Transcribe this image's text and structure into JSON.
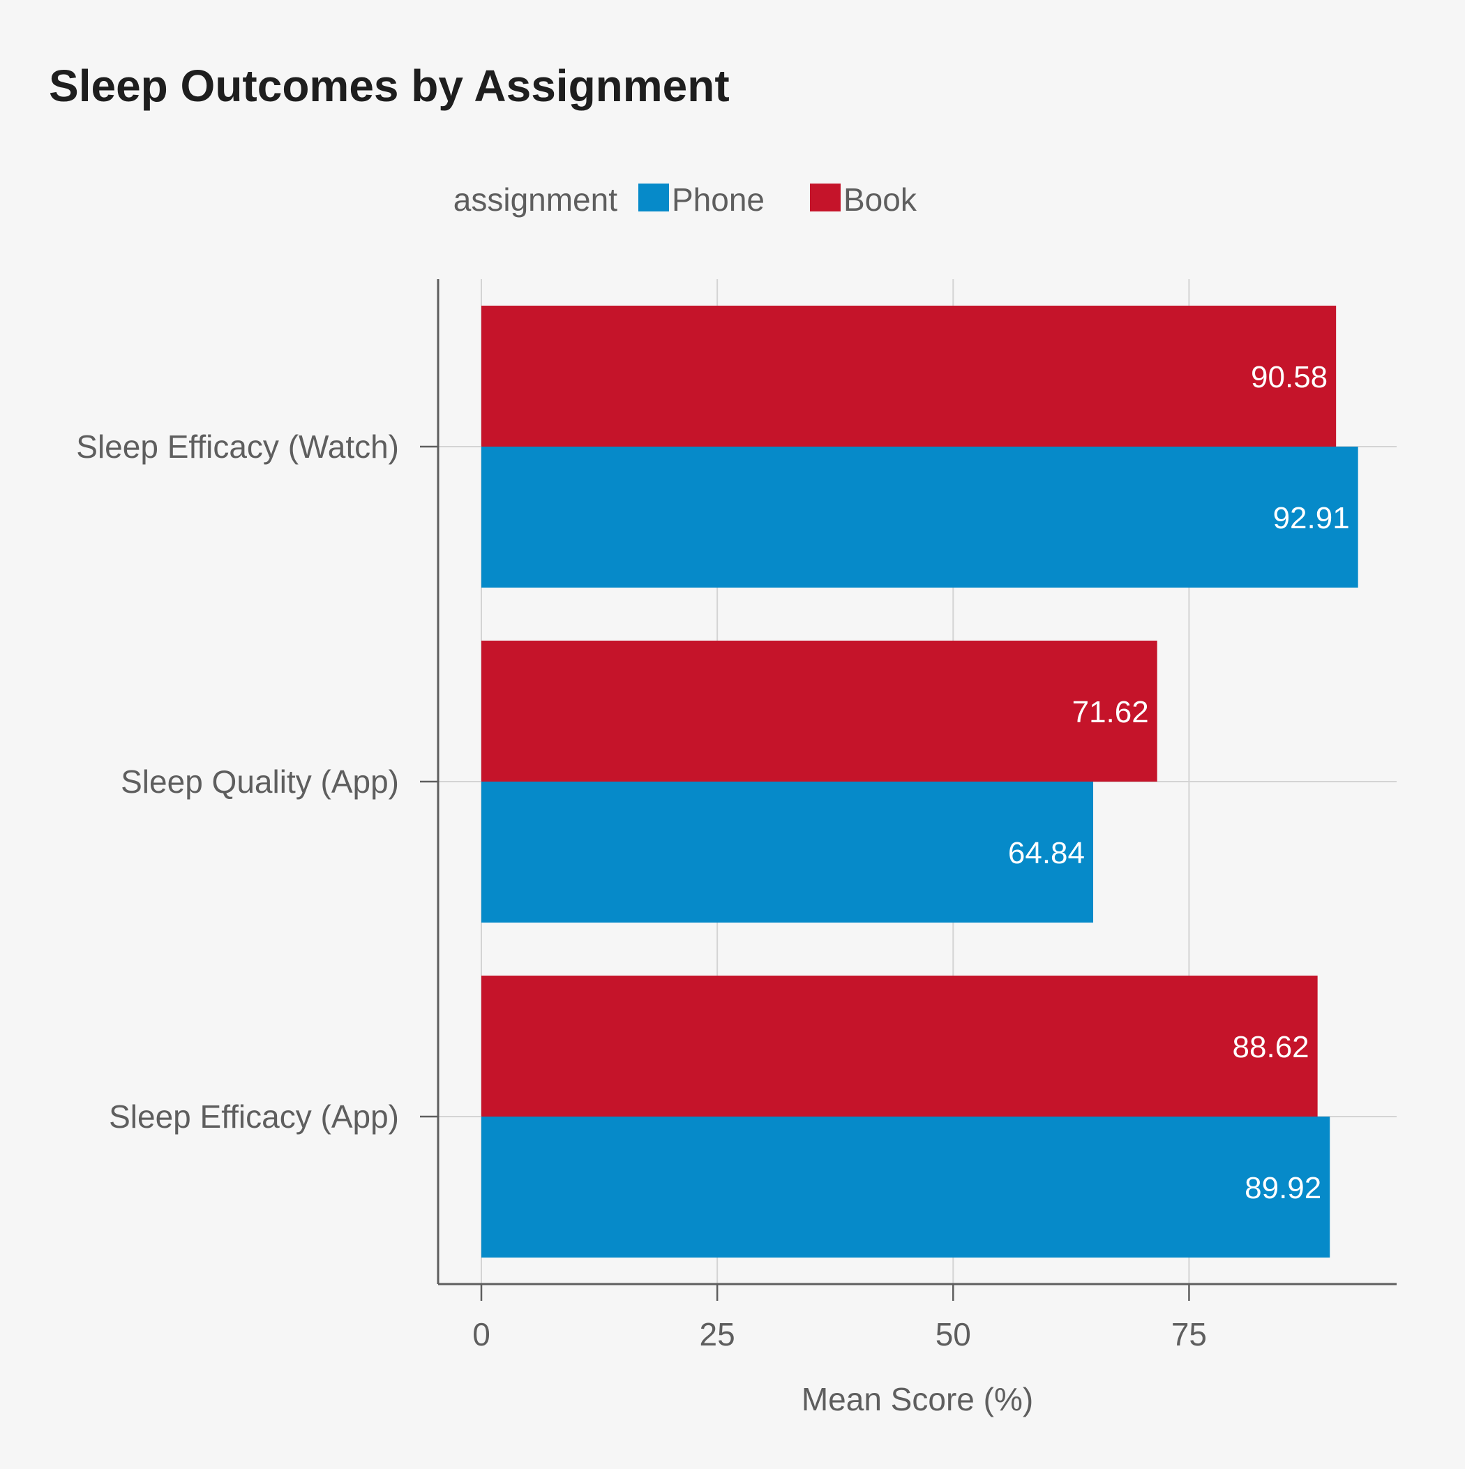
{
  "chart_data": {
    "type": "bar",
    "orientation": "horizontal",
    "title": "Sleep Outcomes by Assignment",
    "xlabel": "Mean Score (%)",
    "ylabel": "",
    "xlim": [
      0,
      97
    ],
    "x_ticks": [
      0,
      25,
      50,
      75
    ],
    "x_tick_labels": [
      "0",
      "25",
      "50",
      "75"
    ],
    "grid": true,
    "legend": {
      "title": "assignment",
      "placement": "top",
      "entries": [
        "Phone",
        "Book"
      ]
    },
    "categories": [
      "Sleep Efficacy (Watch)",
      "Sleep Quality (App)",
      "Sleep Efficacy (App)"
    ],
    "series": [
      {
        "name": "Phone",
        "color": "#068ac9",
        "values": [
          92.91,
          64.84,
          89.92
        ],
        "value_labels": [
          "92.91",
          "64.84",
          "89.92"
        ]
      },
      {
        "name": "Book",
        "color": "#c5142a",
        "values": [
          90.58,
          71.62,
          88.62
        ],
        "value_labels": [
          "90.58",
          "71.62",
          "88.62"
        ]
      }
    ]
  }
}
